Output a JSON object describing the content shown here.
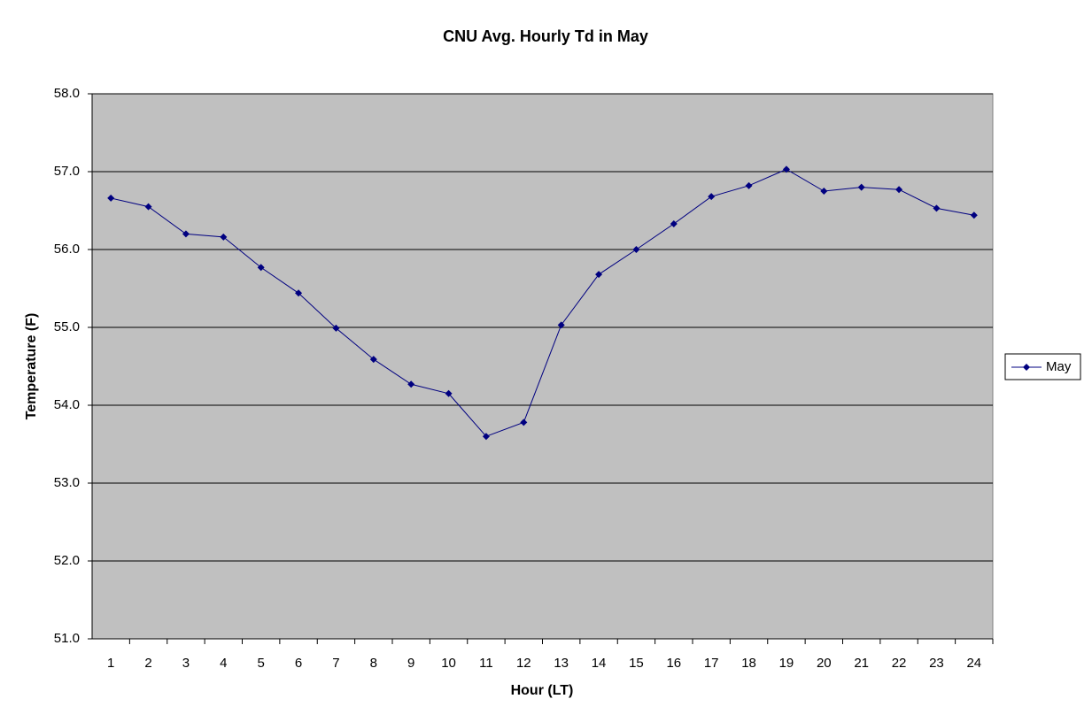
{
  "chart_data": {
    "type": "line",
    "title": "CNU Avg. Hourly Td in May",
    "xlabel": "Hour (LT)",
    "ylabel": "Temperature (F)",
    "categories": [
      "1",
      "2",
      "3",
      "4",
      "5",
      "6",
      "7",
      "8",
      "9",
      "10",
      "11",
      "12",
      "13",
      "14",
      "15",
      "16",
      "17",
      "18",
      "19",
      "20",
      "21",
      "22",
      "23",
      "24"
    ],
    "series": [
      {
        "name": "May",
        "color": "#000080",
        "values": [
          56.66,
          56.55,
          56.2,
          56.16,
          55.77,
          55.44,
          54.99,
          54.59,
          54.27,
          54.15,
          53.6,
          53.78,
          55.03,
          55.68,
          56.0,
          56.33,
          56.68,
          56.82,
          57.03,
          56.75,
          56.8,
          56.77,
          56.53,
          56.44
        ]
      }
    ],
    "ylim": [
      51,
      58
    ],
    "yticks": [
      {
        "value": 51,
        "label": "51.0"
      },
      {
        "value": 52,
        "label": "52.0"
      },
      {
        "value": 53,
        "label": "53.0"
      },
      {
        "value": 54,
        "label": "54.0"
      },
      {
        "value": 55,
        "label": "55.0"
      },
      {
        "value": 56,
        "label": "56.0"
      },
      {
        "value": 57,
        "label": "57.0"
      },
      {
        "value": 58,
        "label": "58.0"
      }
    ],
    "grid": true,
    "legend": "right"
  }
}
